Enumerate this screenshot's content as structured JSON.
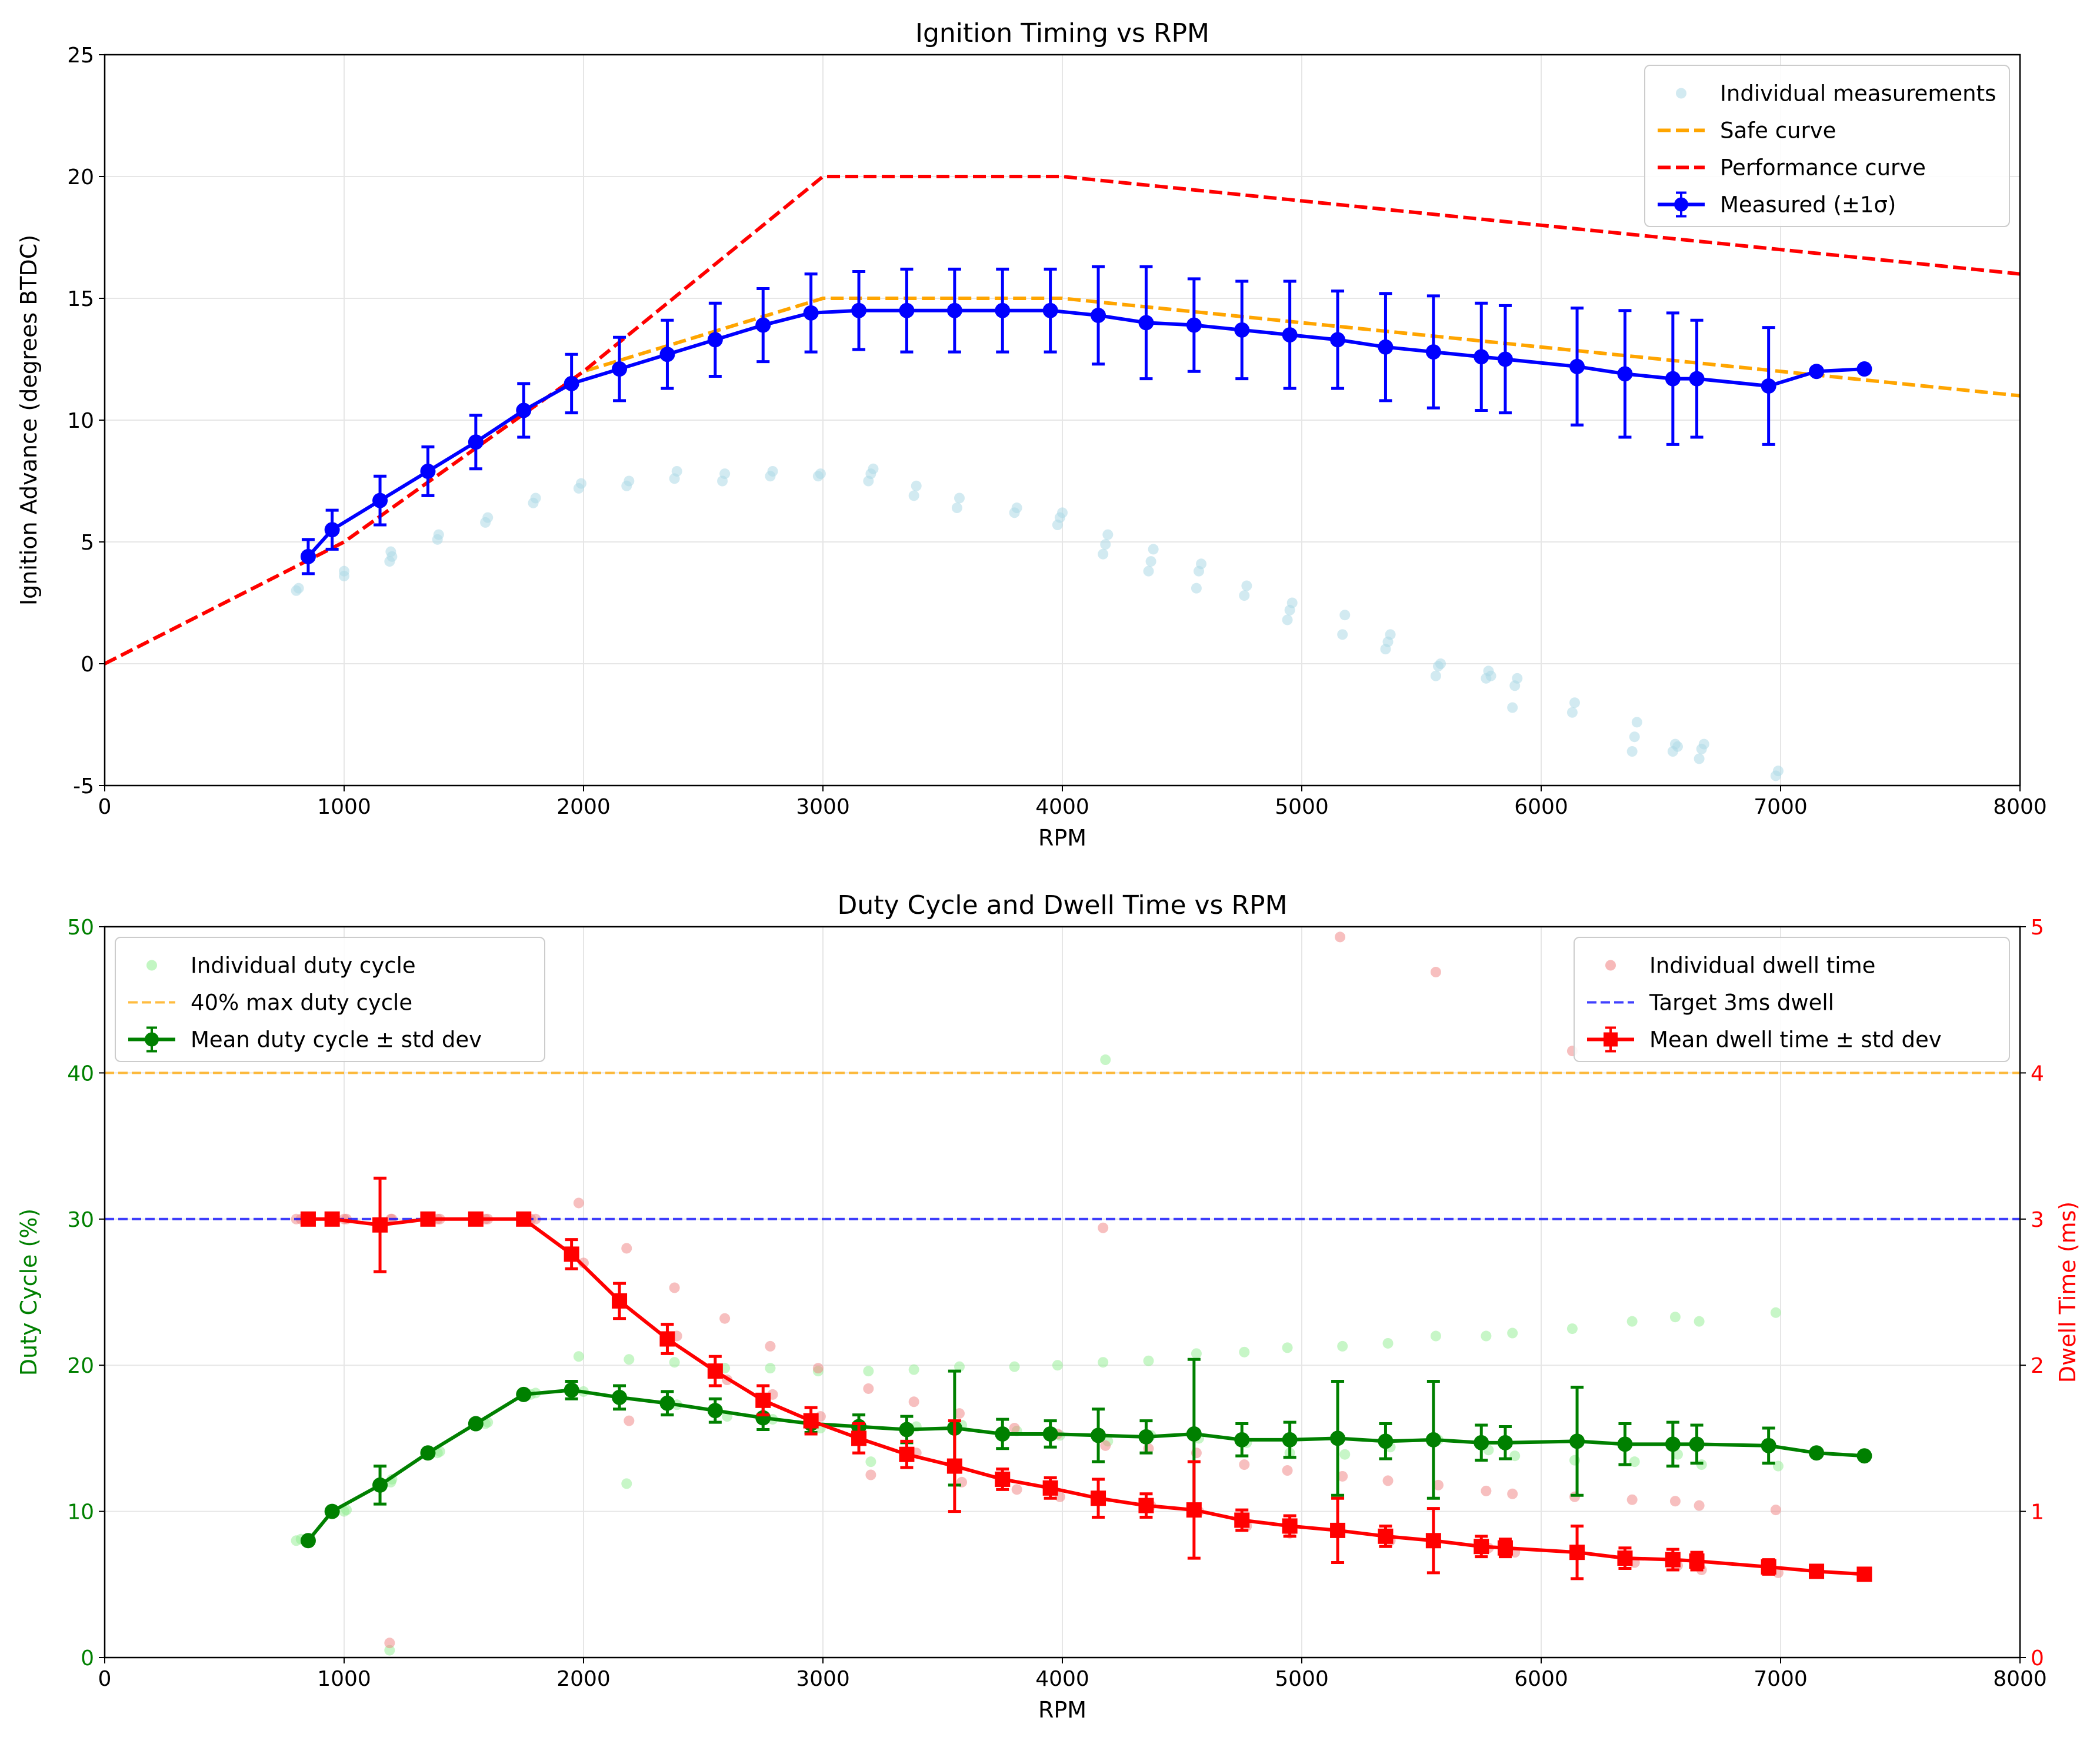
{
  "chart_data": [
    {
      "type": "line",
      "title": "Ignition Timing vs RPM",
      "xlabel": "RPM",
      "ylabel": "Ignition Advance (degrees BTDC)",
      "xlim": [
        0,
        8000
      ],
      "ylim": [
        -5,
        25
      ],
      "xticks": [
        0,
        1000,
        2000,
        3000,
        4000,
        5000,
        6000,
        7000,
        8000
      ],
      "yticks": [
        -5,
        0,
        5,
        10,
        15,
        20,
        25
      ],
      "grid": true,
      "legend_position": "top-right",
      "series": [
        {
          "name": "Individual measurements",
          "kind": "scatter",
          "color": "#add8e6",
          "x": [
            800,
            810,
            1000,
            1000,
            1190,
            1195,
            1200,
            1390,
            1395,
            1590,
            1600,
            1790,
            1800,
            1980,
            1990,
            2180,
            2190,
            2380,
            2390,
            2580,
            2590,
            2780,
            2790,
            2980,
            2990,
            3190,
            3200,
            3210,
            3380,
            3390,
            3560,
            3570,
            3800,
            3810,
            3980,
            3990,
            4000,
            4170,
            4180,
            4190,
            4360,
            4370,
            4380,
            4560,
            4570,
            4580,
            4760,
            4770,
            4940,
            4950,
            4960,
            5170,
            5180,
            5350,
            5360,
            5370,
            5560,
            5570,
            5580,
            5770,
            5780,
            5790,
            5880,
            5890,
            5900,
            6130,
            6140,
            6380,
            6390,
            6400,
            6550,
            6560,
            6570,
            6660,
            6670,
            6680,
            6980,
            6990
          ],
          "y": [
            3.0,
            3.1,
            3.6,
            3.8,
            4.2,
            4.6,
            4.4,
            5.1,
            5.3,
            5.8,
            6.0,
            6.6,
            6.8,
            7.2,
            7.4,
            7.3,
            7.5,
            7.6,
            7.9,
            7.5,
            7.8,
            7.7,
            7.9,
            7.7,
            7.8,
            7.5,
            7.8,
            8.0,
            6.9,
            7.3,
            6.4,
            6.8,
            6.2,
            6.4,
            5.7,
            6.0,
            6.2,
            4.5,
            4.9,
            5.3,
            3.8,
            4.2,
            4.7,
            3.1,
            3.8,
            4.1,
            2.8,
            3.2,
            1.8,
            2.2,
            2.5,
            1.2,
            2.0,
            0.6,
            0.9,
            1.2,
            -0.5,
            -0.1,
            0.0,
            -0.6,
            -0.3,
            -0.5,
            -1.8,
            -0.9,
            -0.6,
            -2.0,
            -1.6,
            -3.6,
            -3.0,
            -2.4,
            -3.6,
            -3.3,
            -3.4,
            -3.9,
            -3.5,
            -3.3,
            -4.6,
            -4.4
          ]
        },
        {
          "name": "Safe curve",
          "kind": "dashed-line",
          "color": "#ffa500",
          "x": [
            0,
            1000,
            2000,
            3000,
            4000,
            8000
          ],
          "y": [
            0,
            5,
            12,
            15,
            15,
            11
          ]
        },
        {
          "name": "Performance curve",
          "kind": "dashed-line",
          "color": "#ff0000",
          "x": [
            0,
            1000,
            2000,
            3000,
            4000,
            8000
          ],
          "y": [
            0,
            5,
            12,
            20,
            20,
            16
          ]
        },
        {
          "name": "Measured (±1σ)",
          "kind": "errorbar-line",
          "color": "#0000ff",
          "x": [
            850,
            950,
            1150,
            1350,
            1550,
            1750,
            1950,
            2150,
            2350,
            2550,
            2750,
            2950,
            3150,
            3350,
            3550,
            3750,
            3950,
            4150,
            4350,
            4550,
            4750,
            4950,
            5150,
            5350,
            5550,
            5750,
            5850,
            6150,
            6350,
            6550,
            6650,
            6950,
            7150,
            7350
          ],
          "y": [
            4.4,
            5.5,
            6.7,
            7.9,
            9.1,
            10.4,
            11.5,
            12.1,
            12.7,
            13.3,
            13.9,
            14.4,
            14.5,
            14.5,
            14.5,
            14.5,
            14.5,
            14.3,
            14.0,
            13.9,
            13.7,
            13.5,
            13.3,
            13.0,
            12.8,
            12.6,
            12.5,
            12.2,
            11.9,
            11.7,
            11.7,
            11.4,
            12.0,
            12.1
          ],
          "err": [
            0.7,
            0.8,
            1.0,
            1.0,
            1.1,
            1.1,
            1.2,
            1.3,
            1.4,
            1.5,
            1.5,
            1.6,
            1.6,
            1.7,
            1.7,
            1.7,
            1.7,
            2.0,
            2.3,
            1.9,
            2.0,
            2.2,
            2.0,
            2.2,
            2.3,
            2.2,
            2.2,
            2.4,
            2.6,
            2.7,
            2.4,
            2.4,
            0.1,
            0.0
          ]
        }
      ]
    },
    {
      "type": "line",
      "title": "Duty Cycle and Dwell Time vs RPM",
      "xlabel": "RPM",
      "ylabel": "Duty Cycle (%)",
      "ylabel_right": "Dwell Time (ms)",
      "xlim": [
        0,
        8000
      ],
      "ylim": [
        0,
        50
      ],
      "ylim_right": [
        0,
        5
      ],
      "xticks": [
        0,
        1000,
        2000,
        3000,
        4000,
        5000,
        6000,
        7000,
        8000
      ],
      "yticks": [
        0,
        10,
        20,
        30,
        40,
        50
      ],
      "yticks_right": [
        0,
        1,
        2,
        3,
        4,
        5
      ],
      "grid": true,
      "colors": {
        "left_axis": "#008000",
        "right_axis": "#ff0000"
      },
      "legend_left_position": "top-left",
      "legend_right_position": "top-right",
      "series": [
        {
          "name": "Individual duty cycle",
          "kind": "scatter",
          "axis": "left",
          "color": "#90ee90",
          "x": [
            800,
            820,
            1000,
            1010,
            1190,
            1195,
            1200,
            1390,
            1400,
            1590,
            1600,
            1780,
            1800,
            1980,
            2000,
            2180,
            2190,
            2380,
            2390,
            2590,
            2600,
            2780,
            2790,
            2980,
            2990,
            3190,
            3200,
            3380,
            3390,
            3570,
            3580,
            3800,
            3810,
            3980,
            3990,
            4170,
            4180,
            4190,
            4360,
            4370,
            4560,
            4570,
            4760,
            4770,
            4940,
            4950,
            5170,
            5180,
            5360,
            5370,
            5560,
            5570,
            5770,
            5780,
            5880,
            5890,
            6130,
            6140,
            6380,
            6390,
            6560,
            6570,
            6660,
            6670,
            6980,
            6990
          ],
          "y": [
            8.0,
            8.1,
            10.0,
            10.1,
            0.5,
            12.0,
            12.2,
            14.0,
            14.1,
            16.0,
            16.1,
            18.0,
            18.1,
            20.6,
            18.2,
            11.9,
            20.4,
            20.2,
            17.3,
            19.8,
            16.5,
            19.8,
            16.3,
            19.6,
            15.7,
            19.6,
            13.4,
            19.7,
            15.8,
            19.9,
            15.9,
            19.9,
            15.5,
            20.0,
            15.2,
            20.2,
            40.9,
            14.8,
            20.3,
            15.2,
            20.8,
            15.0,
            20.9,
            14.7,
            21.2,
            14.0,
            21.3,
            13.9,
            21.5,
            14.4,
            22.0,
            14.9,
            22.0,
            14.2,
            22.2,
            13.8,
            22.5,
            13.5,
            23.0,
            13.4,
            23.3,
            13.9,
            23.0,
            13.2,
            23.6,
            13.1
          ]
        },
        {
          "name": "40% max duty cycle",
          "kind": "dashed-line",
          "axis": "left",
          "color": "#ffa500",
          "x": [
            0,
            8000
          ],
          "y": [
            40,
            40
          ]
        },
        {
          "name": "Mean duty cycle ± std dev",
          "kind": "errorbar-line",
          "axis": "left",
          "color": "#008000",
          "x": [
            850,
            950,
            1150,
            1350,
            1550,
            1750,
            1950,
            2150,
            2350,
            2550,
            2750,
            2950,
            3150,
            3350,
            3550,
            3750,
            3950,
            4150,
            4350,
            4550,
            4750,
            4950,
            5150,
            5350,
            5550,
            5750,
            5850,
            6150,
            6350,
            6550,
            6650,
            6950,
            7150,
            7350
          ],
          "y": [
            8.0,
            10.0,
            11.8,
            14.0,
            16.0,
            18.0,
            18.3,
            17.8,
            17.4,
            16.9,
            16.4,
            16.0,
            15.8,
            15.6,
            15.7,
            15.3,
            15.3,
            15.2,
            15.1,
            15.3,
            14.9,
            14.9,
            15.0,
            14.8,
            14.9,
            14.7,
            14.7,
            14.8,
            14.6,
            14.6,
            14.6,
            14.5,
            14.0,
            13.8
          ],
          "err": [
            0.0,
            0.0,
            1.3,
            0.0,
            0.0,
            0.0,
            0.6,
            0.8,
            0.8,
            0.8,
            0.8,
            0.6,
            0.8,
            0.9,
            3.9,
            1.0,
            0.9,
            1.8,
            1.1,
            5.1,
            1.1,
            1.2,
            3.9,
            1.2,
            4.0,
            1.2,
            1.1,
            3.7,
            1.4,
            1.5,
            1.3,
            1.2,
            0.0,
            0.0
          ]
        },
        {
          "name": "Individual dwell time",
          "kind": "scatter",
          "axis": "right",
          "color": "#f08080",
          "x": [
            800,
            820,
            1000,
            1010,
            1190,
            1195,
            1200,
            1390,
            1400,
            1590,
            1600,
            1780,
            1800,
            1980,
            2000,
            2180,
            2190,
            2380,
            2390,
            2590,
            2600,
            2780,
            2790,
            2980,
            2990,
            3190,
            3200,
            3380,
            3390,
            3570,
            3580,
            3800,
            3810,
            3980,
            3990,
            4170,
            4180,
            4360,
            4370,
            4560,
            4570,
            4760,
            4770,
            4940,
            4950,
            5160,
            5170,
            5360,
            5370,
            5560,
            5570,
            5770,
            5780,
            5880,
            5890,
            6130,
            6140,
            6380,
            6390,
            6560,
            6570,
            6660,
            6670,
            6980,
            6990
          ],
          "y": [
            3.0,
            3.0,
            3.0,
            3.0,
            0.1,
            3.0,
            3.0,
            3.0,
            3.0,
            3.0,
            3.0,
            3.0,
            3.0,
            3.11,
            2.7,
            2.8,
            1.62,
            2.53,
            2.2,
            2.32,
            1.9,
            2.13,
            1.8,
            1.98,
            1.65,
            1.84,
            1.25,
            1.75,
            1.4,
            1.67,
            1.2,
            1.57,
            1.15,
            1.53,
            1.1,
            2.94,
            1.45,
            1.43,
            1.04,
            1.4,
            1.0,
            1.32,
            0.9,
            1.28,
            0.85,
            4.93,
            1.24,
            1.21,
            0.8,
            4.69,
            1.18,
            1.14,
            0.75,
            1.12,
            0.72,
            4.15,
            1.1,
            1.08,
            0.65,
            1.07,
            0.63,
            1.04,
            0.6,
            1.01,
            0.58
          ]
        },
        {
          "name": "Target 3ms dwell",
          "kind": "dashed-line",
          "axis": "right",
          "color": "#0000ff",
          "x": [
            0,
            8000
          ],
          "y": [
            3,
            3
          ]
        },
        {
          "name": "Mean dwell time ± std dev",
          "kind": "errorbar-line",
          "axis": "right",
          "color": "#ff0000",
          "x": [
            850,
            950,
            1150,
            1350,
            1550,
            1750,
            1950,
            2150,
            2350,
            2550,
            2750,
            2950,
            3150,
            3350,
            3550,
            3750,
            3950,
            4150,
            4350,
            4550,
            4750,
            4950,
            5150,
            5350,
            5550,
            5750,
            5850,
            6150,
            6350,
            6550,
            6650,
            6950,
            7150,
            7350
          ],
          "y": [
            3.0,
            3.0,
            2.96,
            3.0,
            3.0,
            3.0,
            2.76,
            2.44,
            2.18,
            1.96,
            1.76,
            1.62,
            1.5,
            1.39,
            1.31,
            1.22,
            1.16,
            1.09,
            1.04,
            1.01,
            0.94,
            0.9,
            0.87,
            0.83,
            0.8,
            0.76,
            0.75,
            0.72,
            0.68,
            0.67,
            0.66,
            0.62,
            0.59,
            0.57
          ],
          "err": [
            0.0,
            0.0,
            0.32,
            0.0,
            0.0,
            0.0,
            0.1,
            0.12,
            0.1,
            0.1,
            0.1,
            0.09,
            0.1,
            0.09,
            0.31,
            0.07,
            0.07,
            0.13,
            0.08,
            0.33,
            0.07,
            0.07,
            0.22,
            0.07,
            0.22,
            0.07,
            0.06,
            0.18,
            0.07,
            0.07,
            0.06,
            0.05,
            0.0,
            0.0
          ]
        }
      ]
    }
  ]
}
